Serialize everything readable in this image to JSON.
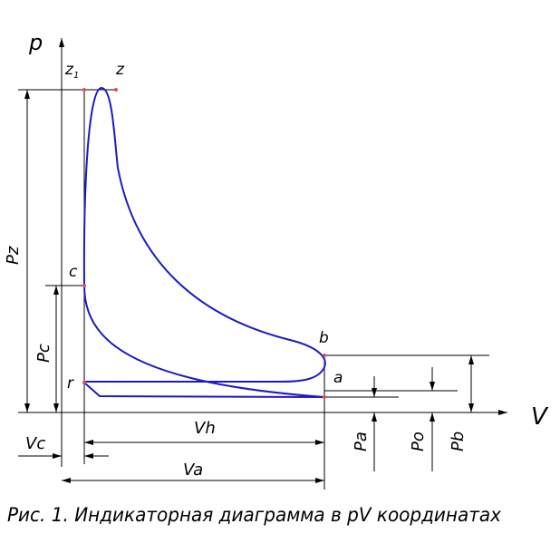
{
  "axes": {
    "y": "p",
    "x": "V"
  },
  "points": {
    "z1": "z",
    "z1_sub": "1",
    "z": "z",
    "c": "c",
    "b": "b",
    "a": "a",
    "r": "r"
  },
  "dimensions": {
    "pz": "Pz",
    "pc": "Pc",
    "vh": "Vh",
    "vc": "Vc",
    "va": "Va",
    "pa": "Pa",
    "po": "Po",
    "pb": "Pb"
  },
  "caption": "Рис. 1. Индикаторная диаграмма в pV координатах"
}
